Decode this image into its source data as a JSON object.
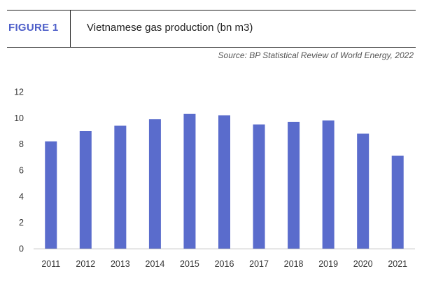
{
  "header": {
    "figure_label": "FIGURE 1",
    "title": "Vietnamese gas production (bn m3)",
    "source": "Source: BP Statistical Review of World Energy, 2022"
  },
  "colors": {
    "bar": "#5a6ccc",
    "accent": "#4e5fc9",
    "axis": "#bfbfbf"
  },
  "chart_data": {
    "type": "bar",
    "categories": [
      "2011",
      "2012",
      "2013",
      "2014",
      "2015",
      "2016",
      "2017",
      "2018",
      "2019",
      "2020",
      "2021"
    ],
    "values": [
      8.2,
      9.0,
      9.4,
      9.9,
      10.3,
      10.2,
      9.5,
      9.7,
      9.8,
      8.8,
      7.1
    ],
    "title": "Vietnamese gas production (bn m3)",
    "xlabel": "",
    "ylabel": "",
    "ylim": [
      0,
      12
    ],
    "yticks": [
      0,
      2,
      4,
      6,
      8,
      10,
      12
    ],
    "grid": false,
    "legend": "none"
  }
}
